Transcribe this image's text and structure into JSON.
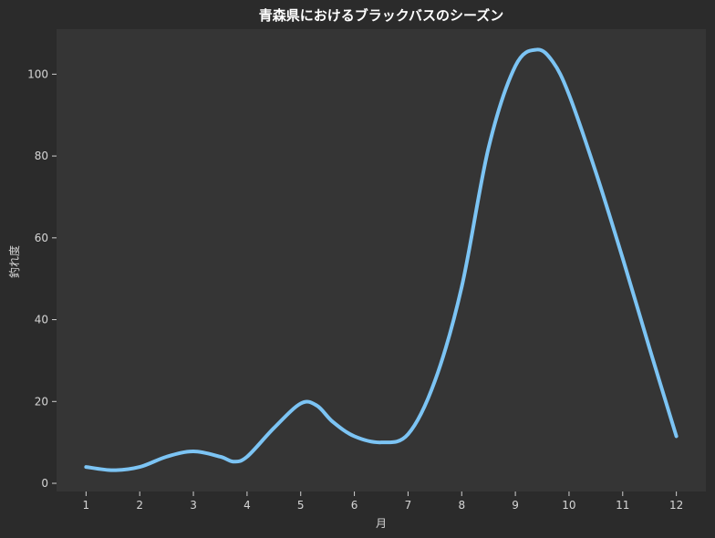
{
  "chart_data": {
    "type": "line",
    "title": "青森県におけるブラックバスのシーズン",
    "xlabel": "月",
    "ylabel": "釣れ度",
    "xlim": [
      0.45,
      12.55
    ],
    "ylim": [
      -2,
      111
    ],
    "x_ticks": [
      1,
      2,
      3,
      4,
      5,
      6,
      7,
      8,
      9,
      10,
      11,
      12
    ],
    "y_ticks": [
      0,
      20,
      40,
      60,
      80,
      100
    ],
    "grid": false,
    "colors": {
      "background": "#2b2b2b",
      "plot_area": "#353535",
      "line": "#7cc4f4"
    },
    "series": [
      {
        "x": [
          1,
          1.5,
          2,
          2.5,
          3,
          3.5,
          3.75,
          4,
          4.5,
          5,
          5.3,
          5.6,
          6,
          6.5,
          7,
          7.5,
          8,
          8.5,
          9,
          9.4,
          9.7,
          10,
          10.5,
          11,
          11.5,
          12
        ],
        "y": [
          4,
          3.2,
          4,
          6.5,
          7.8,
          6.5,
          5.3,
          6.5,
          13.5,
          19.5,
          19,
          15,
          11.5,
          10,
          12,
          25,
          48,
          82,
          102,
          106,
          103,
          95,
          76,
          55,
          33,
          11.5
        ]
      }
    ]
  }
}
